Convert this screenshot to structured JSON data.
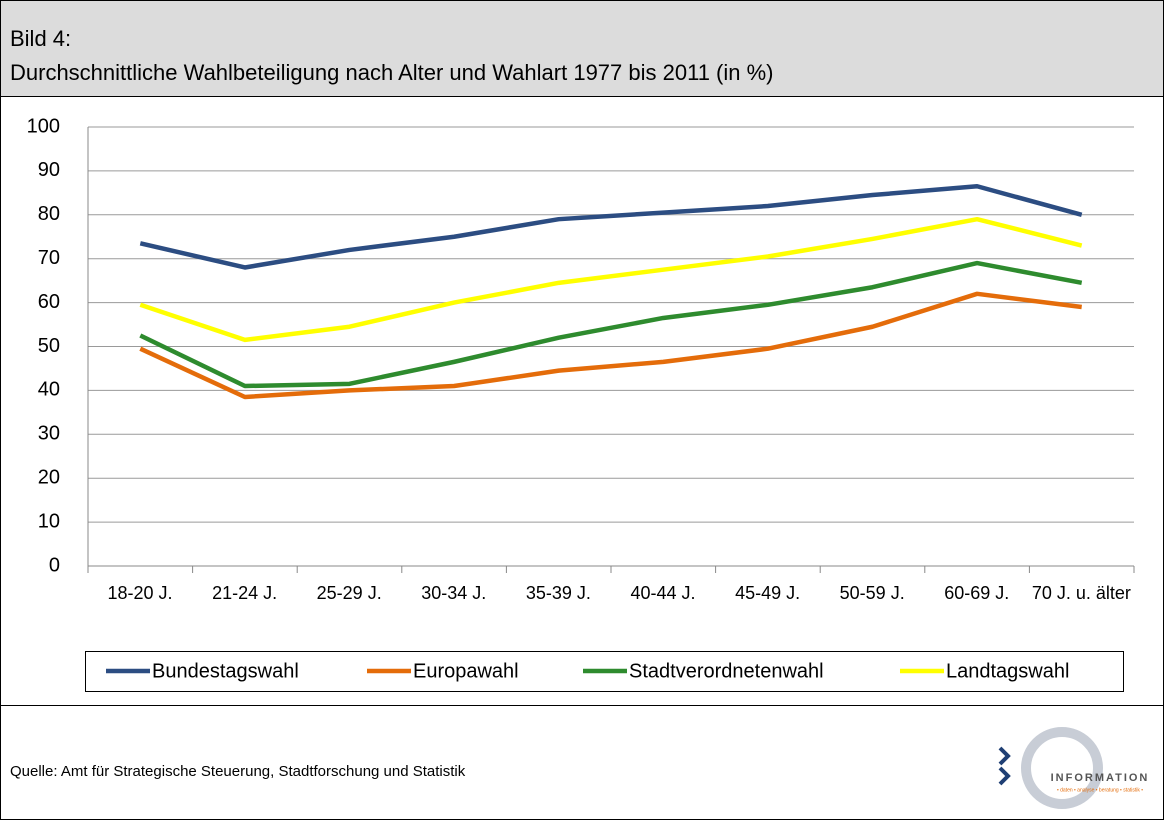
{
  "chart_data": {
    "type": "line",
    "label": "Bild 4:",
    "title": "Durchschnittliche Wahlbeteiligung nach Alter und Wahlart 1977 bis 2011 (in %)",
    "categories": [
      "18-20 J.",
      "21-24 J.",
      "25-29 J.",
      "30-34 J.",
      "35-39 J.",
      "40-44 J.",
      "45-49 J.",
      "50-59 J.",
      "60-69 J.",
      "70 J. u. älter"
    ],
    "series": [
      {
        "name": "Bundestagswahl",
        "color": "#2c4d82",
        "values": [
          73.5,
          68,
          72,
          75,
          79,
          80.5,
          82,
          84.5,
          86.5,
          80
        ]
      },
      {
        "name": "Europawahl",
        "color": "#e46c0a",
        "values": [
          49.5,
          38.5,
          40,
          41,
          44.5,
          46.5,
          49.5,
          54.5,
          62,
          59
        ]
      },
      {
        "name": "Stadtverordnetenwahl",
        "color": "#2e8b2e",
        "values": [
          52.5,
          41,
          41.5,
          46.5,
          52,
          56.5,
          59.5,
          63.5,
          69,
          64.5
        ]
      },
      {
        "name": "Landtagswahl",
        "color": "#ffff00",
        "values": [
          59.5,
          51.5,
          54.5,
          60,
          64.5,
          67.5,
          70.5,
          74.5,
          79,
          73
        ]
      }
    ],
    "ylim": [
      0,
      100
    ],
    "yticks": [
      0,
      10,
      20,
      30,
      40,
      50,
      60,
      70,
      80,
      90,
      100
    ],
    "grid": true,
    "legend": "bottom",
    "source": "Quelle: Amt für Strategische Steuerung, Stadtforschung und Statistik",
    "logo_text": "INFORMATION",
    "logo_tagline": "• daten • analyse • beratung • statistik •"
  }
}
